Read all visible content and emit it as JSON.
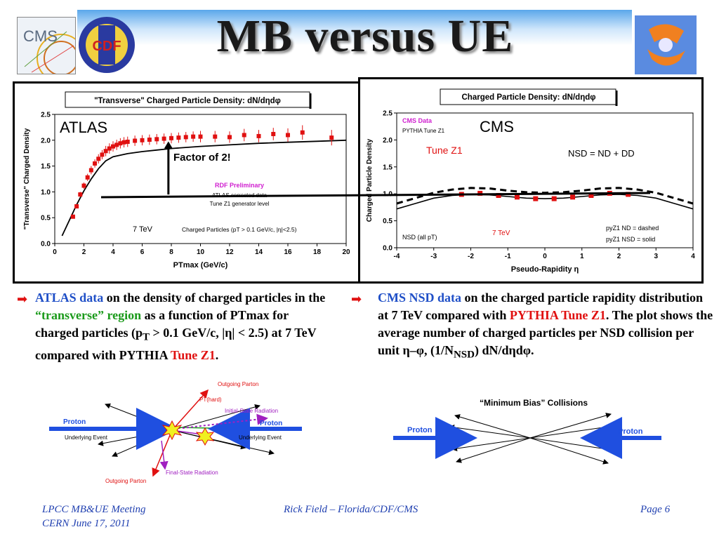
{
  "title": "MB versus UE",
  "logos": {
    "cms": "CMS",
    "cdf": "CDF"
  },
  "chart_data": [
    {
      "type": "scatter",
      "title": "\"Transverse\" Charged Particle Density: dN/dηdφ",
      "xlabel": "PTmax  (GeV/c)",
      "ylabel": "\"Transverse\" Charged Density",
      "xlim": [
        0,
        20
      ],
      "ylim": [
        0,
        2.5
      ],
      "xticks": [
        "0",
        "2",
        "4",
        "6",
        "8",
        "10",
        "12",
        "14",
        "16",
        "18",
        "20"
      ],
      "yticks": [
        "0.0",
        "0.5",
        "1.0",
        "1.5",
        "2.0",
        "2.5"
      ],
      "series": [
        {
          "name": "ATLAS corrected data",
          "type": "scatter",
          "x": [
            1.25,
            1.5,
            1.75,
            2.0,
            2.25,
            2.5,
            2.75,
            3.0,
            3.25,
            3.5,
            3.75,
            4.0,
            4.25,
            4.5,
            4.75,
            5.0,
            5.5,
            6.0,
            6.5,
            7.0,
            7.5,
            8.0,
            8.5,
            9.0,
            9.5,
            10.0,
            11.0,
            12.0,
            13.0,
            14.0,
            15.0,
            16.0,
            17.0,
            19.0
          ],
          "y": [
            0.52,
            0.72,
            0.95,
            1.12,
            1.28,
            1.42,
            1.55,
            1.64,
            1.72,
            1.79,
            1.84,
            1.88,
            1.91,
            1.94,
            1.96,
            1.97,
            1.99,
            2.0,
            2.01,
            2.02,
            2.03,
            2.04,
            2.05,
            2.06,
            2.07,
            2.07,
            2.07,
            2.06,
            2.1,
            2.08,
            2.12,
            2.1,
            2.15,
            2.05
          ],
          "err": [
            0.03,
            0.04,
            0.05,
            0.06,
            0.07,
            0.08,
            0.08,
            0.09,
            0.09,
            0.1,
            0.1,
            0.1,
            0.1,
            0.1,
            0.1,
            0.1,
            0.1,
            0.1,
            0.1,
            0.1,
            0.1,
            0.1,
            0.1,
            0.1,
            0.1,
            0.11,
            0.11,
            0.11,
            0.12,
            0.12,
            0.12,
            0.13,
            0.14,
            0.15
          ]
        },
        {
          "name": "Tune Z1 generator level",
          "type": "line",
          "x": [
            0.5,
            1.0,
            1.5,
            2.0,
            2.5,
            3.0,
            3.5,
            4.0,
            5.0,
            6.0,
            7.0,
            8.0,
            10.0,
            12.0,
            14.0,
            16.0,
            18.0,
            20.0
          ],
          "y": [
            0.15,
            0.45,
            0.75,
            1.02,
            1.25,
            1.45,
            1.6,
            1.68,
            1.74,
            1.78,
            1.81,
            1.84,
            1.88,
            1.91,
            1.94,
            1.96,
            1.98,
            2.0
          ]
        }
      ],
      "annotations": {
        "atlas_label": "ATLAS",
        "factor": "Factor of 2!",
        "prelim": "RDF Preliminary",
        "corrected": "ATLAS corrected data",
        "generator": "Tune Z1 generator level",
        "energy": "7 TeV",
        "cuts": "Charged Particles (pT > 0.1 GeV/c, |η|<2.5)"
      }
    },
    {
      "type": "scatter",
      "title": "Charged Particle Density: dN/dηdφ",
      "xlabel": "Pseudo-Rapidity η",
      "ylabel": "Charged Particle Density",
      "xlim": [
        -4,
        4
      ],
      "ylim": [
        0,
        2.5
      ],
      "xticks": [
        "-4",
        "-3",
        "-2",
        "-1",
        "0",
        "1",
        "2",
        "3",
        "4"
      ],
      "yticks": [
        "0.0",
        "0.5",
        "1.0",
        "1.5",
        "2.0",
        "2.5"
      ],
      "series": [
        {
          "name": "CMS Data",
          "type": "scatter",
          "x": [
            -2.25,
            -1.75,
            -1.25,
            -0.75,
            -0.25,
            0.25,
            0.75,
            1.25,
            1.75,
            2.25
          ],
          "y": [
            0.99,
            1.01,
            0.97,
            0.94,
            0.91,
            0.91,
            0.94,
            0.97,
            1.01,
            0.99
          ]
        },
        {
          "name": "pyZ1 ND = dashed",
          "type": "dashed",
          "x": [
            -4.0,
            -3.5,
            -3.0,
            -2.5,
            -2.0,
            -1.5,
            -1.0,
            -0.5,
            0.0,
            0.5,
            1.0,
            1.5,
            2.0,
            2.5,
            3.0,
            3.5,
            4.0
          ],
          "y": [
            0.82,
            0.92,
            1.02,
            1.08,
            1.11,
            1.1,
            1.06,
            1.03,
            1.02,
            1.03,
            1.06,
            1.1,
            1.11,
            1.08,
            1.02,
            0.92,
            0.82
          ]
        },
        {
          "name": "pyZ1 NSD = solid",
          "type": "line",
          "x": [
            -4.0,
            -3.5,
            -3.0,
            -2.5,
            -2.0,
            -1.5,
            -1.0,
            -0.5,
            0.0,
            0.5,
            1.0,
            1.5,
            2.0,
            2.5,
            3.0,
            3.5,
            4.0
          ],
          "y": [
            0.72,
            0.82,
            0.92,
            0.97,
            0.99,
            0.98,
            0.95,
            0.92,
            0.91,
            0.92,
            0.95,
            0.98,
            0.99,
            0.97,
            0.92,
            0.82,
            0.72
          ]
        }
      ],
      "annotations": {
        "cms_label": "CMS",
        "cms_data": "CMS Data",
        "pythia": "PYTHIA Tune Z1",
        "tune": "Tune Z1",
        "nsd_def": "NSD = ND + DD",
        "nsd_all": "NSD (all pT)",
        "energy": "7 TeV",
        "nd_dashed": "pyZ1 ND = dashed",
        "nsd_solid": "pyZ1 NSD = solid"
      }
    }
  ],
  "text_left": {
    "a1": "ATLAS data",
    "a2": " on the density of charged particles in the ",
    "a3": "“transverse” region",
    "a4": " as a function of PTmax for charged particles (p",
    "a4sub": "T",
    "a5": " > 0.1 GeV/c, |η| < 2.5) at 7 TeV compared with PYTHIA ",
    "a6": "Tune Z1",
    "a7": "."
  },
  "text_right": {
    "b1": "CMS NSD data",
    "b2": " on the charged particle rapidity distribution at 7 TeV compared with ",
    "b3": "PYTHIA Tune Z1",
    "b4": ".  The plot shows the average number of charged particles per NSD collision per unit η–φ, (1/N",
    "b4sub": "NSD",
    "b5": ") dN/dηdφ."
  },
  "diagram_ue": {
    "outgoing_top": "Outgoing Parton",
    "pt_hard": "PT(hard)",
    "isr": "Initial-State Radiation",
    "proton_left": "Proton",
    "proton_right": "Proton",
    "ue_left": "Underlying Event",
    "ue_right": "Underlying Event",
    "fsr": "Final-State Radiation",
    "outgoing_bottom": "Outgoing Parton"
  },
  "diagram_mb": {
    "title": "“Minimum Bias” Collisions",
    "proton_left": "Proton",
    "proton_right": "Proton"
  },
  "footer": {
    "meeting": "LPCC MB&UE Meeting",
    "place": "CERN June 17, 2011",
    "author": "Rick Field – Florida/CDF/CMS",
    "page": "Page 6"
  }
}
